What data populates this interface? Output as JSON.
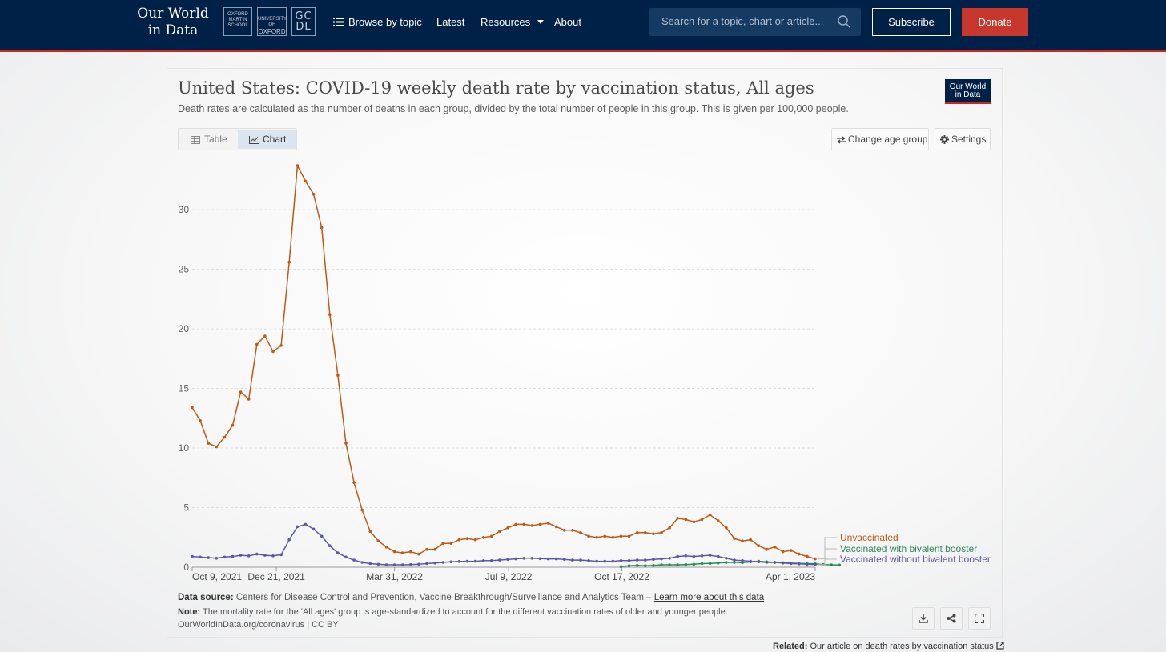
{
  "nav": {
    "brand_line1": "Our World",
    "brand_line2": "in Data",
    "partners": [
      {
        "lines": [
          "OXFORD",
          "MARTIN",
          "SCHOOL"
        ]
      },
      {
        "lines": [
          "UNIVERSITY OF",
          "OXFORD"
        ]
      },
      {
        "lines": [
          "GC",
          "DL"
        ]
      }
    ],
    "browse": "Browse by topic",
    "latest": "Latest",
    "resources": "Resources",
    "about": "About",
    "search_placeholder": "Search for a topic, chart or article...",
    "subscribe": "Subscribe",
    "donate": "Donate"
  },
  "card": {
    "title": "United States: COVID-19 weekly death rate by vaccination status, All ages",
    "subtitle": "Death rates are calculated as the number of deaths in each group, divided by the total number of people in this group. This is given per 100,000 people.",
    "logo_line1": "Our World",
    "logo_line2": "in Data",
    "tab_table": "Table",
    "tab_chart": "Chart",
    "active_tab": "Chart",
    "change_age": "Change age group",
    "settings": "Settings"
  },
  "footer": {
    "source_label": "Data source:",
    "source_text": "Centers for Disease Control and Prevention, Vaccine Breakthrough/Surveillance and Analytics Team –",
    "learn_more": "Learn more about this data",
    "note_label": "Note:",
    "note_text": "The mortality rate for the 'All ages' group is age-standardized to account for the different vaccination rates of older and younger people.",
    "url": "OurWorldInData.org/coronavirus | CC BY",
    "related_label": "Related:",
    "related_link": "Our article on death rates by vaccination status"
  },
  "colors": {
    "navy": "#002147",
    "red_accent": "#ce261e",
    "unvaccinated": "#c05917",
    "bivalent": "#2e8a57",
    "no_bivalent": "#5b58a6"
  },
  "icons": [
    "list-icon",
    "chevron-down-icon",
    "search-icon",
    "table-icon",
    "line-chart-icon",
    "swap-icon",
    "gear-icon",
    "download-icon",
    "share-icon",
    "fullscreen-icon",
    "external-link-icon"
  ],
  "chart_data": {
    "type": "line",
    "title": "United States: COVID-19 weekly death rate by vaccination status, All ages",
    "xlabel": "",
    "ylabel": "",
    "ylim": [
      0,
      33.7
    ],
    "yticks": [
      0,
      5,
      10,
      15,
      20,
      25,
      30
    ],
    "x_range": [
      "2021-10-09",
      "2023-04-01"
    ],
    "x_tick_labels": [
      "Oct 9, 2021",
      "Dec 21, 2021",
      "Mar 31, 2022",
      "Jul 9, 2022",
      "Oct 17, 2022",
      "Apr 1, 2023"
    ],
    "legend_placement": "right, inline labels at line ends",
    "grid": "horizontal dashed",
    "series": [
      {
        "name": "Unvaccinated",
        "color": "#c05917",
        "start_week": 0,
        "values": [
          13.4,
          12.3,
          10.4,
          10.1,
          10.9,
          11.9,
          14.7,
          14.1,
          18.7,
          19.4,
          18.1,
          18.6,
          25.6,
          33.7,
          32.4,
          31.3,
          28.5,
          21.2,
          16.1,
          10.4,
          7.1,
          4.8,
          3.0,
          2.2,
          1.7,
          1.3,
          1.2,
          1.3,
          1.1,
          1.5,
          1.5,
          2.0,
          2.0,
          2.3,
          2.4,
          2.3,
          2.5,
          2.6,
          3.0,
          3.3,
          3.6,
          3.6,
          3.5,
          3.6,
          3.7,
          3.4,
          3.1,
          3.1,
          2.9,
          2.6,
          2.5,
          2.6,
          2.5,
          2.6,
          2.6,
          2.9,
          2.9,
          2.8,
          2.9,
          3.3,
          4.1,
          4.0,
          3.8,
          4.0,
          4.4,
          3.9,
          3.3,
          2.4,
          2.2,
          2.3,
          1.8,
          1.5,
          1.7,
          1.3,
          1.4,
          1.1,
          0.9,
          0.7
        ]
      },
      {
        "name": "Vaccinated with bivalent booster",
        "color": "#2e8a57",
        "start_week": 53,
        "values": [
          0.05,
          0.12,
          0.15,
          0.12,
          0.15,
          0.2,
          0.2,
          0.2,
          0.22,
          0.25,
          0.3,
          0.32,
          0.35,
          0.4,
          0.4,
          0.38,
          0.45,
          0.5,
          0.45,
          0.4,
          0.38,
          0.35,
          0.32,
          0.3,
          0.28,
          0.22,
          0.2,
          0.18
        ]
      },
      {
        "name": "Vaccinated without bivalent booster",
        "color": "#5b58a6",
        "start_week": 0,
        "values": [
          0.9,
          0.85,
          0.8,
          0.75,
          0.85,
          0.9,
          1.0,
          0.95,
          1.1,
          1.0,
          0.95,
          1.05,
          2.3,
          3.4,
          3.6,
          3.2,
          2.6,
          1.8,
          1.2,
          0.85,
          0.6,
          0.4,
          0.3,
          0.25,
          0.2,
          0.2,
          0.2,
          0.22,
          0.25,
          0.3,
          0.35,
          0.4,
          0.45,
          0.48,
          0.5,
          0.5,
          0.55,
          0.55,
          0.6,
          0.65,
          0.7,
          0.75,
          0.75,
          0.72,
          0.7,
          0.7,
          0.65,
          0.6,
          0.6,
          0.55,
          0.5,
          0.5,
          0.5,
          0.55,
          0.55,
          0.6,
          0.6,
          0.65,
          0.7,
          0.75,
          0.9,
          0.95,
          0.9,
          0.95,
          1.0,
          0.9,
          0.75,
          0.6,
          0.55,
          0.5,
          0.45,
          0.4,
          0.4,
          0.35,
          0.3,
          0.28,
          0.25,
          0.22
        ]
      }
    ]
  }
}
